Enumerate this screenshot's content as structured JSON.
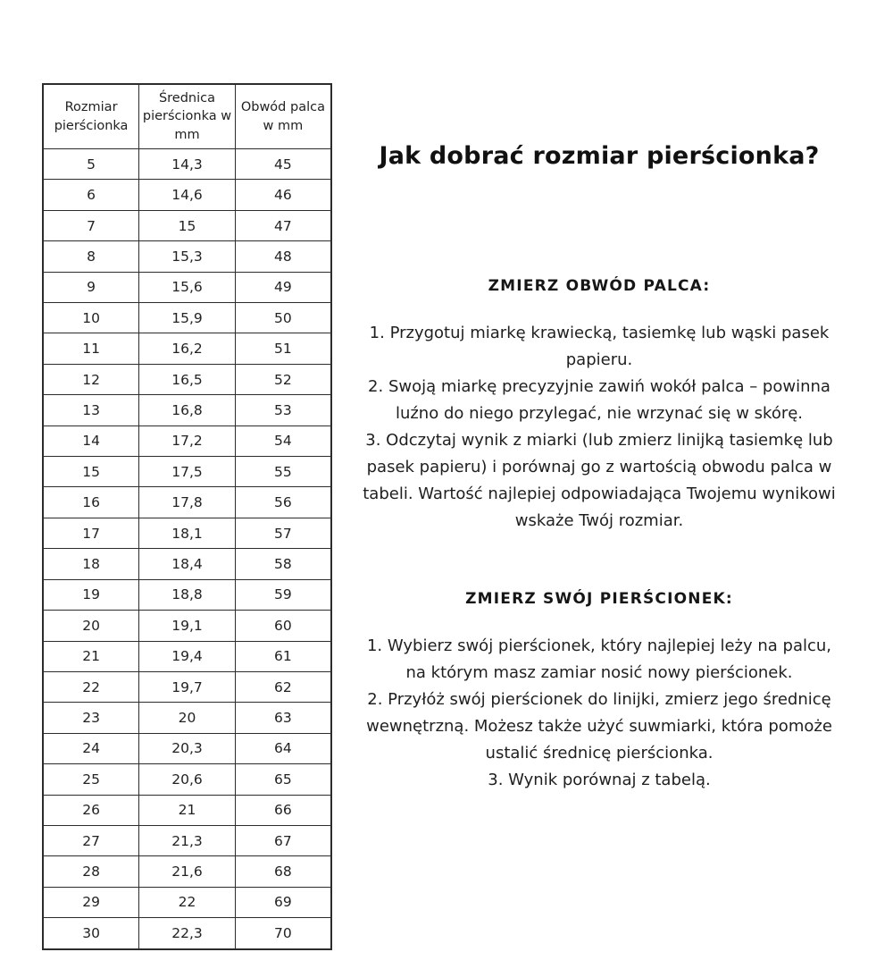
{
  "title": "Jak dobrać rozmiar pierścionka?",
  "colors": {
    "background": "#ffffff",
    "text": "#1f1f1f",
    "table_border": "#2c2c2c"
  },
  "table": {
    "headers": [
      "Rozmiar pierścionka",
      "Średnica pierścionka w mm",
      "Obwód palca w mm"
    ],
    "rows": [
      [
        "5",
        "14,3",
        "45"
      ],
      [
        "6",
        "14,6",
        "46"
      ],
      [
        "7",
        "15",
        "47"
      ],
      [
        "8",
        "15,3",
        "48"
      ],
      [
        "9",
        "15,6",
        "49"
      ],
      [
        "10",
        "15,9",
        "50"
      ],
      [
        "11",
        "16,2",
        "51"
      ],
      [
        "12",
        "16,5",
        "52"
      ],
      [
        "13",
        "16,8",
        "53"
      ],
      [
        "14",
        "17,2",
        "54"
      ],
      [
        "15",
        "17,5",
        "55"
      ],
      [
        "16",
        "17,8",
        "56"
      ],
      [
        "17",
        "18,1",
        "57"
      ],
      [
        "18",
        "18,4",
        "58"
      ],
      [
        "19",
        "18,8",
        "59"
      ],
      [
        "20",
        "19,1",
        "60"
      ],
      [
        "21",
        "19,4",
        "61"
      ],
      [
        "22",
        "19,7",
        "62"
      ],
      [
        "23",
        "20",
        "63"
      ],
      [
        "24",
        "20,3",
        "64"
      ],
      [
        "25",
        "20,6",
        "65"
      ],
      [
        "26",
        "21",
        "66"
      ],
      [
        "27",
        "21,3",
        "67"
      ],
      [
        "28",
        "21,6",
        "68"
      ],
      [
        "29",
        "22",
        "69"
      ],
      [
        "30",
        "22,3",
        "70"
      ]
    ]
  },
  "sections": [
    {
      "heading": "ZMIERZ OBWÓD PALCA:",
      "items": [
        "1. Przygotuj miarkę krawiecką, tasiemkę lub wąski pasek papieru.",
        "2. Swoją miarkę precyzyjnie zawiń wokół palca – powinna luźno do niego przylegać, nie wrzynać się w skórę.",
        "3. Odczytaj wynik z miarki (lub zmierz linijką tasiemkę lub pasek papieru) i porównaj go z wartością obwodu palca w tabeli. Wartość najlepiej odpowiadająca Twojemu wynikowi wskaże Twój rozmiar."
      ]
    },
    {
      "heading": "ZMIERZ SWÓJ PIERŚCIONEK:",
      "items": [
        "1.  Wybierz swój pierścionek, który najlepiej leży na palcu, na którym masz zamiar nosić nowy pierścionek.",
        "2. Przyłóż swój pierścionek do linijki, zmierz jego średnicę wewnętrzną. Możesz także użyć suwmiarki, która pomoże ustalić średnicę pierścionka.",
        "3. Wynik porównaj z tabelą."
      ]
    }
  ]
}
